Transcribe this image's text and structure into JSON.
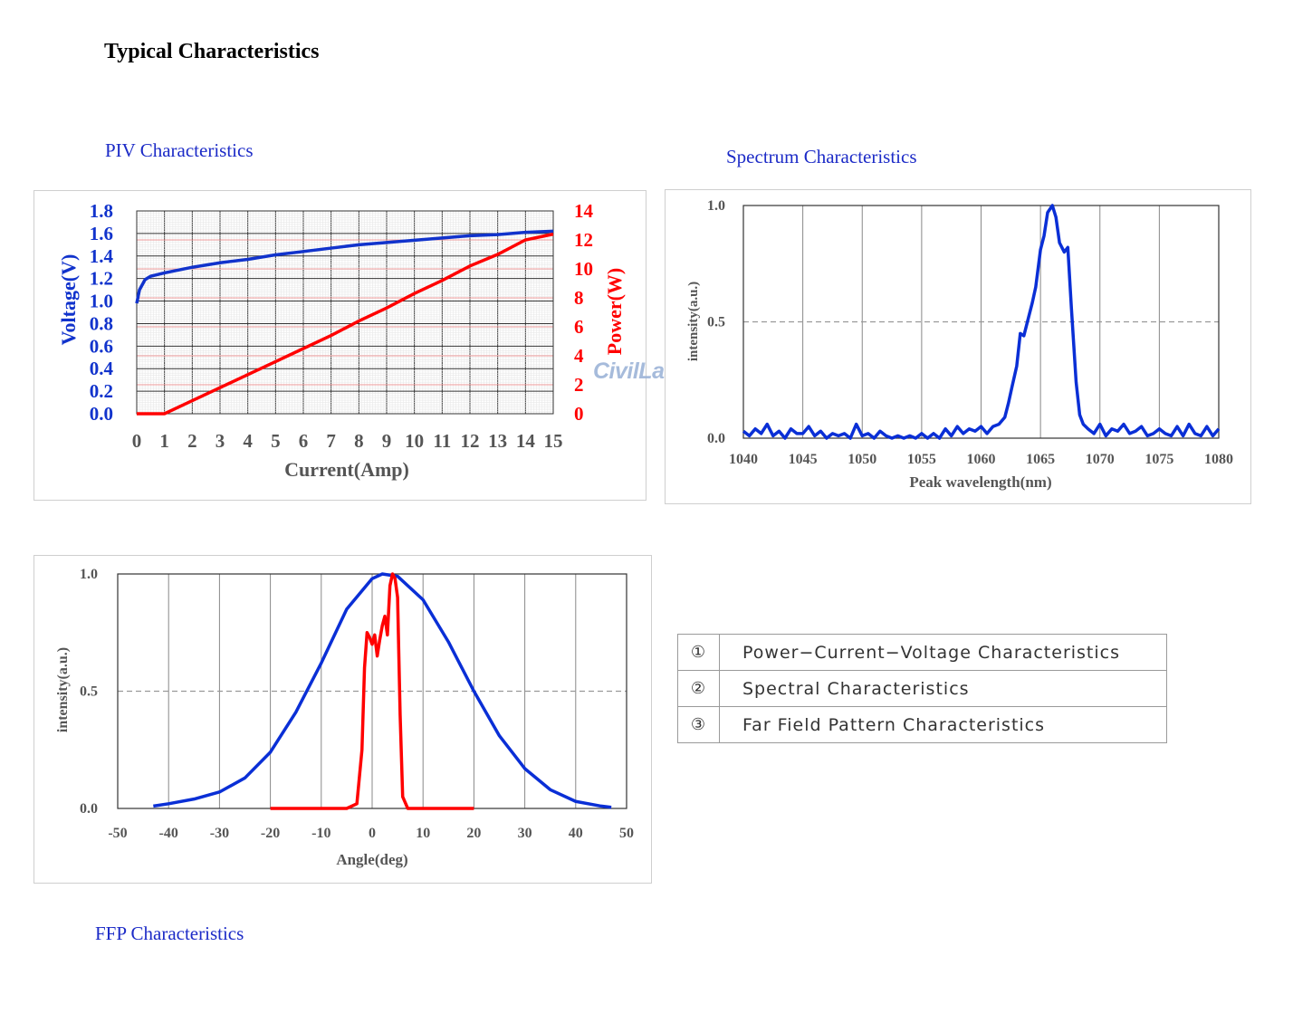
{
  "page_title": "Typical Characteristics",
  "sections": {
    "piv": "PIV Characteristics",
    "spectrum": "Spectrum Characteristics",
    "ffp": "FFP Characteristics"
  },
  "watermark": "CivilLaser",
  "legend_table": [
    {
      "num": "①",
      "label": "Power−Current−Voltage  Characteristics"
    },
    {
      "num": "②",
      "label": "Spectral Characteristics"
    },
    {
      "num": "③",
      "label": "Far Field Pattern Characteristics"
    }
  ],
  "colors": {
    "voltage": "#1133cc",
    "power": "#ff0000",
    "section_title": "#1c2bc7",
    "spectrum": "#0a2fd6",
    "ffp_blue": "#0a2fd6",
    "ffp_red": "#ff0000"
  },
  "chart_data": [
    {
      "type": "line",
      "xlabel": "Current(Amp)",
      "ylabel": "Voltage(V)",
      "y2label": "Power(W)",
      "xlim": [
        0,
        15
      ],
      "ylim": [
        0,
        1.8
      ],
      "y2lim": [
        0,
        14
      ],
      "xticks": [
        "0",
        "1",
        "2",
        "3",
        "4",
        "5",
        "6",
        "7",
        "8",
        "9",
        "10",
        "11",
        "12",
        "13",
        "14",
        "15"
      ],
      "yticks": [
        "0.0",
        "0.2",
        "0.4",
        "0.6",
        "0.8",
        "1.0",
        "1.2",
        "1.4",
        "1.6",
        "1.8"
      ],
      "y2ticks": [
        "0",
        "2",
        "4",
        "6",
        "8",
        "10",
        "12",
        "14"
      ],
      "grid": true,
      "series": [
        {
          "name": "Voltage(V)",
          "axis": "left",
          "x": [
            0,
            0.1,
            0.3,
            0.5,
            1,
            2,
            3,
            4,
            5,
            6,
            7,
            8,
            9,
            10,
            11,
            12,
            13,
            14,
            15
          ],
          "y": [
            0.98,
            1.1,
            1.19,
            1.22,
            1.25,
            1.3,
            1.34,
            1.37,
            1.41,
            1.44,
            1.47,
            1.5,
            1.52,
            1.54,
            1.56,
            1.58,
            1.59,
            1.61,
            1.62
          ]
        },
        {
          "name": "Power(W)",
          "axis": "right",
          "x": [
            0,
            1,
            2,
            3,
            4,
            5,
            6,
            7,
            8,
            9,
            10,
            11,
            12,
            13,
            14,
            15
          ],
          "y": [
            0,
            0,
            0.9,
            1.8,
            2.7,
            3.6,
            4.5,
            5.4,
            6.4,
            7.3,
            8.3,
            9.2,
            10.2,
            11.0,
            12.0,
            12.4
          ]
        }
      ]
    },
    {
      "type": "line",
      "xlabel": "Peak wavelength(nm)",
      "ylabel": "intensity(a.u.)",
      "xlim": [
        1040,
        1080
      ],
      "ylim": [
        0,
        1.0
      ],
      "xticks": [
        "1040",
        "1045",
        "1050",
        "1055",
        "1060",
        "1065",
        "1070",
        "1075",
        "1080"
      ],
      "yticks": [
        "0.0",
        "0.5",
        "1.0"
      ],
      "grid": "vertical solid, horizontal dashed at 0.5",
      "series": [
        {
          "name": "",
          "x": [
            1040,
            1040.5,
            1041,
            1041.5,
            1042,
            1042.5,
            1043,
            1043.5,
            1044,
            1044.5,
            1045,
            1045.5,
            1046,
            1046.5,
            1047,
            1047.5,
            1048,
            1048.5,
            1049,
            1049.5,
            1050,
            1050.5,
            1051,
            1051.5,
            1052,
            1052.5,
            1053,
            1053.5,
            1054,
            1054.5,
            1055,
            1055.5,
            1056,
            1056.5,
            1057,
            1057.5,
            1058,
            1058.5,
            1059,
            1059.5,
            1060,
            1060.5,
            1061,
            1061.5,
            1062,
            1062.3,
            1062.6,
            1063,
            1063.3,
            1063.6,
            1064,
            1064.3,
            1064.6,
            1065,
            1065.3,
            1065.6,
            1066,
            1066.3,
            1066.6,
            1067,
            1067.3,
            1067.6,
            1068,
            1068.3,
            1068.6,
            1069,
            1069.5,
            1070,
            1070.5,
            1071,
            1071.5,
            1072,
            1072.5,
            1073,
            1073.5,
            1074,
            1074.5,
            1075,
            1075.5,
            1076,
            1076.5,
            1077,
            1077.5,
            1078,
            1078.5,
            1079,
            1079.5,
            1080
          ],
          "y": [
            0.03,
            0.01,
            0.04,
            0.02,
            0.06,
            0.01,
            0.03,
            0.0,
            0.04,
            0.02,
            0.02,
            0.05,
            0.01,
            0.03,
            0.0,
            0.02,
            0.01,
            0.02,
            0.0,
            0.06,
            0.01,
            0.02,
            0.0,
            0.03,
            0.01,
            0.0,
            0.01,
            0.0,
            0.01,
            0.0,
            0.02,
            0.0,
            0.02,
            0.0,
            0.04,
            0.01,
            0.05,
            0.02,
            0.04,
            0.03,
            0.05,
            0.02,
            0.05,
            0.06,
            0.09,
            0.15,
            0.22,
            0.31,
            0.45,
            0.44,
            0.52,
            0.58,
            0.65,
            0.81,
            0.87,
            0.97,
            1.0,
            0.95,
            0.84,
            0.8,
            0.82,
            0.56,
            0.24,
            0.1,
            0.06,
            0.04,
            0.02,
            0.06,
            0.01,
            0.04,
            0.03,
            0.06,
            0.02,
            0.03,
            0.05,
            0.01,
            0.02,
            0.04,
            0.02,
            0.01,
            0.05,
            0.01,
            0.06,
            0.02,
            0.01,
            0.05,
            0.01,
            0.04
          ]
        }
      ]
    },
    {
      "type": "line",
      "xlabel": "Angle(deg)",
      "ylabel": "intensity(a.u.)",
      "xlim": [
        -50,
        50
      ],
      "ylim": [
        0,
        1.0
      ],
      "xticks": [
        "-50",
        "-40",
        "-30",
        "-20",
        "-10",
        "0",
        "10",
        "20",
        "30",
        "40",
        "50"
      ],
      "yticks": [
        "0.0",
        "0.5",
        "1.0"
      ],
      "grid": "vertical solid, horizontal dashed at 0.5",
      "series": [
        {
          "name": "",
          "x": [
            -43,
            -40,
            -35,
            -30,
            -25,
            -20,
            -15,
            -10,
            -5,
            0,
            2,
            5,
            10,
            15,
            20,
            25,
            30,
            35,
            40,
            45,
            47
          ],
          "y": [
            0.01,
            0.02,
            0.04,
            0.07,
            0.13,
            0.24,
            0.41,
            0.62,
            0.85,
            0.98,
            1.0,
            0.99,
            0.89,
            0.71,
            0.5,
            0.31,
            0.17,
            0.08,
            0.03,
            0.01,
            0.005
          ]
        },
        {
          "name": "",
          "x": [
            -20,
            -5,
            -3,
            -2,
            -1.5,
            -1,
            -0.5,
            0,
            0.5,
            1,
            1.5,
            2,
            2.5,
            3,
            3.5,
            4,
            4.5,
            5,
            5.5,
            6,
            7,
            8,
            20
          ],
          "y": [
            0,
            0,
            0.02,
            0.25,
            0.6,
            0.75,
            0.73,
            0.7,
            0.74,
            0.65,
            0.72,
            0.78,
            0.82,
            0.74,
            0.95,
            1.0,
            0.98,
            0.9,
            0.4,
            0.05,
            0.0,
            0.0,
            0.0
          ]
        }
      ]
    }
  ]
}
